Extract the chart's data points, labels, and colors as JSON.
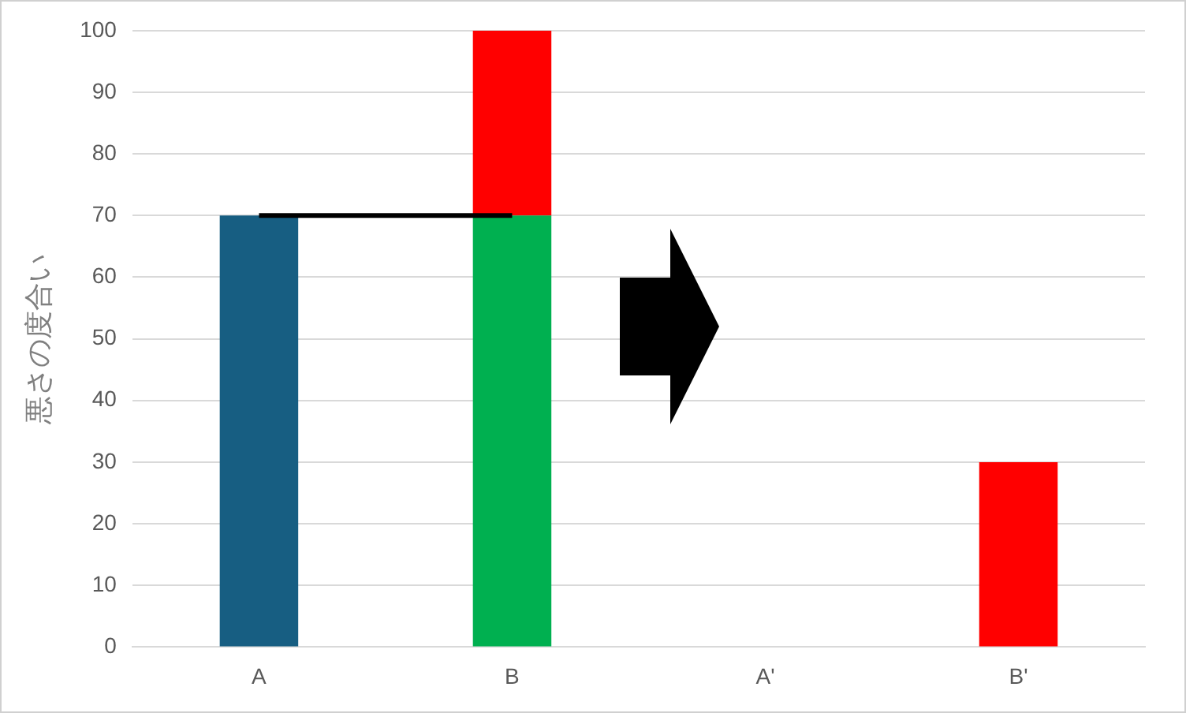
{
  "chart_data": {
    "type": "bar",
    "ylabel": "悪さの度合い",
    "categories": [
      "A",
      "B",
      "A'",
      "B'"
    ],
    "series": [
      {
        "color": "#175e82",
        "values": [
          70,
          null,
          null,
          null
        ]
      },
      {
        "color": "#00b050",
        "values": [
          null,
          70,
          null,
          null
        ]
      },
      {
        "color": "#ff0000",
        "values": [
          null,
          30,
          null,
          30
        ]
      },
      {
        "type": "line",
        "color": "#000000",
        "values": [
          70,
          70,
          null,
          null
        ]
      }
    ],
    "stacked": true,
    "ylim": [
      0,
      100
    ],
    "yticks": [
      0,
      10,
      20,
      30,
      40,
      50,
      60,
      70,
      80,
      90,
      100
    ],
    "grid": "y",
    "legend": false
  }
}
